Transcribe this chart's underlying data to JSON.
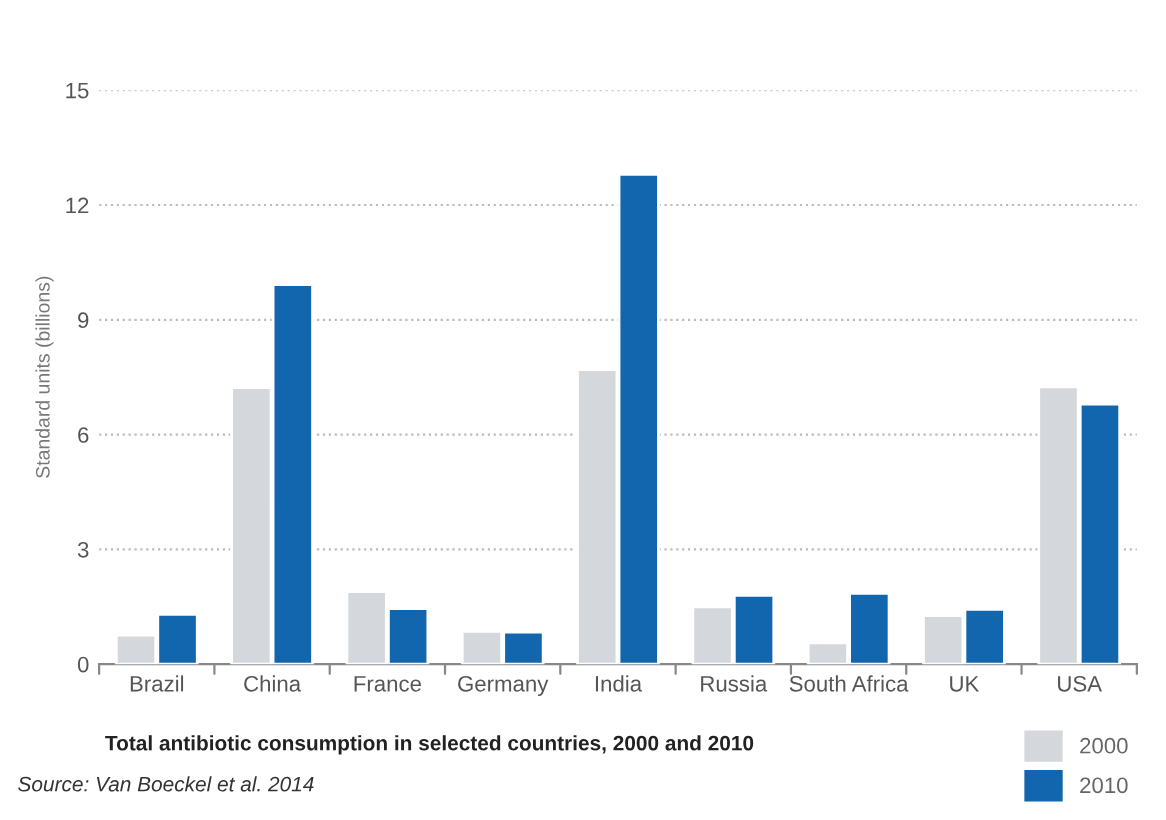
{
  "chart_data": {
    "type": "bar",
    "title": "Total antibiotic consumption in selected countries, 2000 and 2010",
    "ylabel": "Standard units (billions)",
    "annotations": [
      "Source: Van Boeckel et al. 2014"
    ],
    "categories": [
      "Brazil",
      "China",
      "France",
      "Germany",
      "India",
      "Russia",
      "South Africa",
      "UK",
      "USA"
    ],
    "series": [
      {
        "name": "2000",
        "color": "#d4d8dc",
        "values": [
          0.76,
          7.23,
          1.9,
          0.86,
          7.7,
          1.5,
          0.56,
          1.27,
          7.25
        ]
      },
      {
        "name": "2010",
        "color": "#1166ad",
        "values": [
          1.3,
          9.92,
          1.45,
          0.84,
          12.8,
          1.8,
          1.85,
          1.43,
          6.8
        ]
      }
    ],
    "ylim": [
      0,
      15
    ],
    "yticks": [
      0,
      3,
      6,
      9,
      12,
      15
    ],
    "grid": "y",
    "legend": "bottom right"
  }
}
